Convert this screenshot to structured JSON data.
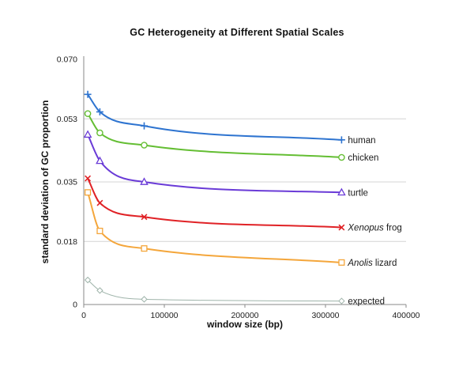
{
  "chart_data": {
    "type": "line",
    "title": "GC Heterogeneity at Different Spatial Scales",
    "xlabel": "window size (bp)",
    "ylabel": "standard deviation of GC proportion",
    "xlim": [
      0,
      400000
    ],
    "ylim": [
      0,
      0.07
    ],
    "grid": "horizontal",
    "legend_position": "right-of-line-ends",
    "x_ticks": [
      {
        "value": 0,
        "label": "0"
      },
      {
        "value": 100000,
        "label": "100000"
      },
      {
        "value": 200000,
        "label": "200000"
      },
      {
        "value": 300000,
        "label": "300000"
      },
      {
        "value": 400000,
        "label": "400000"
      }
    ],
    "y_ticks": [
      {
        "value": 0,
        "label": "0",
        "grid": false
      },
      {
        "value": 0.018,
        "label": "0.018",
        "grid": true
      },
      {
        "value": 0.035,
        "label": "0.035",
        "grid": true
      },
      {
        "value": 0.053,
        "label": "0.053",
        "grid": true
      },
      {
        "value": 0.07,
        "label": "0.070",
        "grid": false
      }
    ],
    "x": [
      5000,
      20000,
      75000,
      320000
    ],
    "series": [
      {
        "name": "human",
        "label_italic": "",
        "label_rest": "human",
        "color": "#2E74D0",
        "marker": "plus",
        "line_width": 2,
        "values": [
          0.06,
          0.055,
          0.051,
          0.047
        ]
      },
      {
        "name": "chicken",
        "label_italic": "",
        "label_rest": "chicken",
        "color": "#64BE33",
        "marker": "circle",
        "line_width": 2,
        "values": [
          0.0545,
          0.049,
          0.0455,
          0.042
        ]
      },
      {
        "name": "turtle",
        "label_italic": "",
        "label_rest": "turtle",
        "color": "#6A3BD7",
        "marker": "triangle",
        "line_width": 2,
        "values": [
          0.0485,
          0.041,
          0.035,
          0.032
        ]
      },
      {
        "name": "xenopus-frog",
        "label_italic": "Xenopus",
        "label_rest": " frog",
        "color": "#E02226",
        "marker": "x",
        "line_width": 2,
        "values": [
          0.036,
          0.029,
          0.025,
          0.022
        ]
      },
      {
        "name": "anolis-lizard",
        "label_italic": "Anolis",
        "label_rest": " lizard",
        "color": "#F4A63B",
        "marker": "square",
        "line_width": 2,
        "values": [
          0.032,
          0.021,
          0.016,
          0.012
        ]
      },
      {
        "name": "expected",
        "label_italic": "",
        "label_rest": "expected",
        "color": "#9FB4AA",
        "marker": "diamond",
        "line_width": 1,
        "values": [
          0.007,
          0.004,
          0.0015,
          0.001
        ]
      }
    ]
  }
}
